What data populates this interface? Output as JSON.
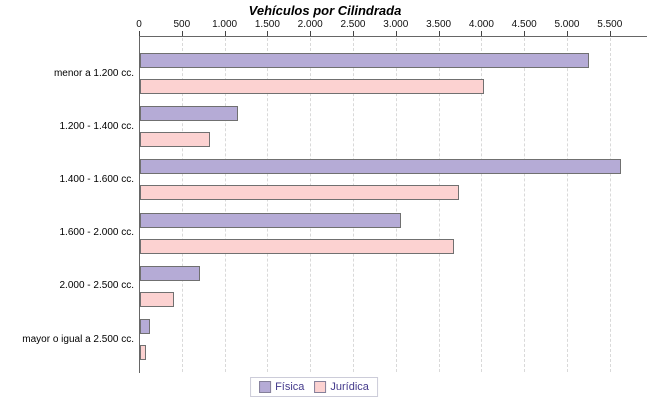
{
  "title": "Vehículos por Cilindrada",
  "chart_data": {
    "type": "bar",
    "orientation": "horizontal",
    "title": "Vehículos por Cilindrada",
    "categories": [
      "menor a 1.200 cc.",
      "1.200 - 1.400 cc.",
      "1.400 - 1.600 cc.",
      "1.600 - 2.000 cc.",
      "2.000 - 2.500 cc.",
      "mayor o igual a 2.500 cc."
    ],
    "series": [
      {
        "name": "Física",
        "color": "#b5abd6",
        "values": [
          5220,
          1120,
          5600,
          3030,
          680,
          90
        ]
      },
      {
        "name": "Jurídica",
        "color": "#fcd2d1",
        "values": [
          4000,
          800,
          3700,
          3650,
          375,
          45
        ]
      }
    ],
    "x_ticks": [
      0,
      500,
      1000,
      1500,
      2000,
      2500,
      3000,
      3500,
      4000,
      4500,
      5000,
      5500
    ],
    "x_tick_labels": [
      "0",
      "500",
      "1.000",
      "1.500",
      "2.000",
      "2.500",
      "3.000",
      "3.500",
      "4.000",
      "4.500",
      "5.000",
      "5.500"
    ],
    "xlim": [
      0,
      5923
    ],
    "grid": "vertical-dashed",
    "legend_position": "bottom-center"
  },
  "legend": {
    "items": [
      {
        "label": "Física",
        "color": "#b5abd6"
      },
      {
        "label": "Jurídica",
        "color": "#fcd2d1"
      }
    ]
  },
  "colors": {
    "fisica_fill": "#b5abd6",
    "juridica_fill": "#fcd2d1",
    "bar_border": "#707070",
    "axis": "#666666",
    "gridline": "#d9d9d9",
    "legend_text": "#443a8c",
    "background": "#ffffff"
  }
}
